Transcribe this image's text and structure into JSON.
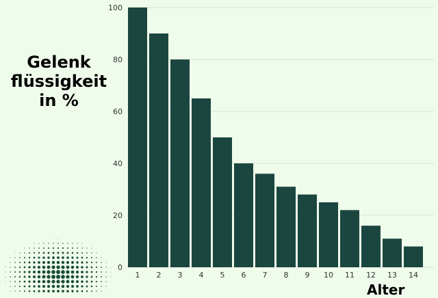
{
  "chart_data": {
    "type": "bar",
    "categories": [
      "1",
      "2",
      "3",
      "4",
      "5",
      "6",
      "7",
      "8",
      "9",
      "10",
      "11",
      "12",
      "13",
      "14"
    ],
    "values": [
      100,
      90,
      80,
      65,
      50,
      40,
      36,
      31,
      28,
      25,
      22,
      16,
      11,
      8
    ],
    "ylabel_lines": [
      "Gelenk",
      "flüssigkeit",
      "in %"
    ],
    "xlabel": "Alter",
    "ylim": [
      0,
      100
    ],
    "yticks": [
      0,
      20,
      40,
      60,
      80,
      100
    ],
    "grid": true,
    "bar_color": "#1b4640",
    "grid_color": "#d5e6d0",
    "background": "#effbeb",
    "dot_color": "#1b4a3a"
  }
}
